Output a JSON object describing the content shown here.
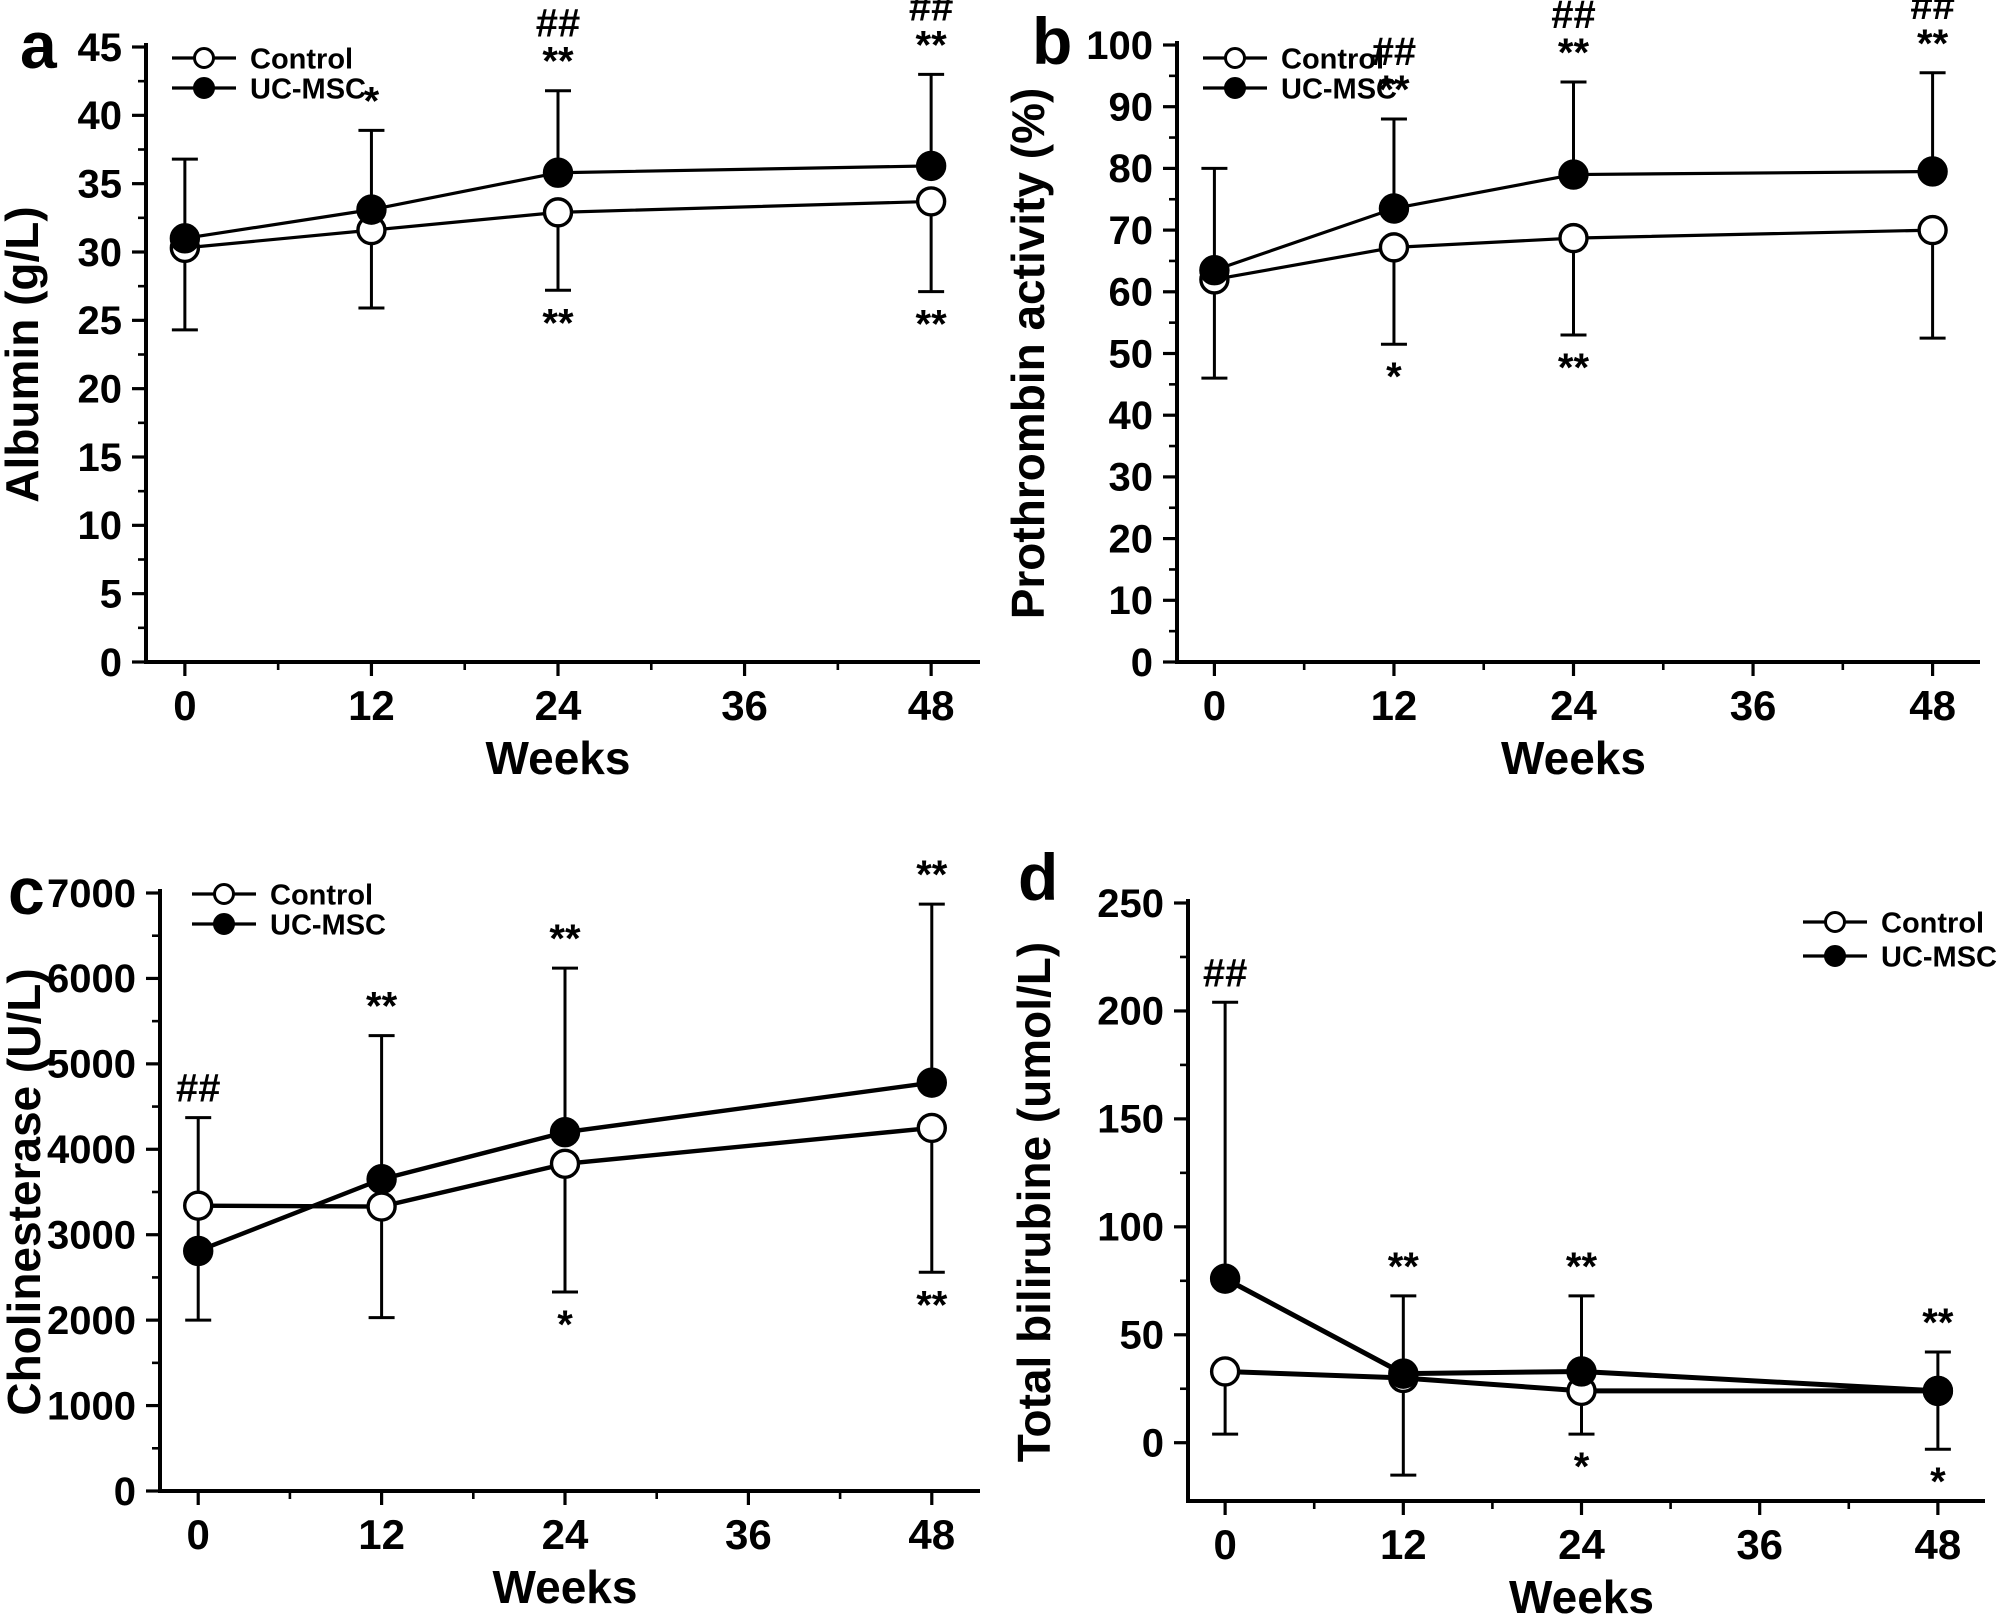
{
  "figure": {
    "background_color": "#ffffff",
    "foreground_color": "#000000",
    "legend_labels": {
      "control": "Control",
      "treatment": "UC-MSC"
    }
  },
  "chart_data": [
    {
      "type": "line",
      "panel_label": "a",
      "xlabel": "Weeks",
      "ylabel": "Albumin (g/L)",
      "x": [
        0,
        12,
        24,
        48
      ],
      "xticks": [
        0,
        12,
        24,
        36,
        48
      ],
      "xminor": [
        6,
        18,
        30,
        42
      ],
      "xlim": [
        -2.5,
        50.5
      ],
      "ylim": [
        0,
        45
      ],
      "yticks": [
        0,
        5,
        10,
        15,
        20,
        25,
        30,
        35,
        40,
        45
      ],
      "yminor": [
        2.5,
        7.5,
        12.5,
        17.5,
        22.5,
        27.5,
        32.5,
        37.5,
        42.5
      ],
      "grid": false,
      "legend_position": "top-left",
      "legend": [
        {
          "label": "Control",
          "marker": "open-circle"
        },
        {
          "label": "UC-MSC",
          "marker": "filled-circle"
        }
      ],
      "series": [
        {
          "name": "Control",
          "marker": "open-circle",
          "values": [
            30.3,
            31.6,
            32.9,
            33.7
          ],
          "err_lo": [
            24.3,
            25.9,
            27.2,
            27.1
          ],
          "err_hi": [
            36.8,
            null,
            null,
            null
          ]
        },
        {
          "name": "UC-MSC",
          "marker": "filled-circle",
          "values": [
            31.0,
            33.1,
            35.8,
            36.3
          ],
          "err_lo": [
            null,
            null,
            null,
            null
          ],
          "err_hi": [
            null,
            38.9,
            41.8,
            43.0
          ]
        }
      ],
      "annotations": [
        {
          "x": 12,
          "y": 38.9,
          "side": "above",
          "lines": [
            "*"
          ]
        },
        {
          "x": 24,
          "y": 41.8,
          "side": "above",
          "lines": [
            "##",
            "**"
          ]
        },
        {
          "x": 48,
          "y": 43.0,
          "side": "above",
          "lines": [
            "##",
            "**"
          ]
        },
        {
          "x": 24,
          "y": 27.2,
          "side": "below",
          "lines": [
            "**"
          ]
        },
        {
          "x": 48,
          "y": 27.1,
          "side": "below",
          "lines": [
            "**"
          ]
        }
      ]
    },
    {
      "type": "line",
      "panel_label": "b",
      "xlabel": "Weeks",
      "ylabel": "Prothrombin activity (%)",
      "x": [
        0,
        12,
        24,
        48
      ],
      "xticks": [
        0,
        12,
        24,
        36,
        48
      ],
      "xminor": [
        6,
        18,
        30,
        42
      ],
      "xlim": [
        -2.5,
        50.5
      ],
      "ylim": [
        0,
        100
      ],
      "yticks": [
        0,
        10,
        20,
        30,
        40,
        50,
        60,
        70,
        80,
        90,
        100
      ],
      "yminor": [
        5,
        15,
        25,
        35,
        45,
        55,
        65,
        75,
        85,
        95
      ],
      "grid": false,
      "legend_position": "top-left",
      "legend": [
        {
          "label": "Control",
          "marker": "open-circle"
        },
        {
          "label": "UC-MSC",
          "marker": "filled-circle"
        }
      ],
      "series": [
        {
          "name": "Control",
          "marker": "open-circle",
          "values": [
            62.0,
            67.2,
            68.7,
            70.0
          ],
          "err_lo": [
            46.0,
            51.5,
            53.0,
            52.5
          ],
          "err_hi": [
            80.0,
            null,
            null,
            null
          ]
        },
        {
          "name": "UC-MSC",
          "marker": "filled-circle",
          "values": [
            63.5,
            73.5,
            79.0,
            79.5
          ],
          "err_lo": [
            null,
            null,
            null,
            null
          ],
          "err_hi": [
            null,
            88.0,
            94.0,
            95.5
          ]
        }
      ],
      "annotations": [
        {
          "x": 12,
          "y": 88.0,
          "side": "above",
          "lines": [
            "##",
            "**"
          ]
        },
        {
          "x": 24,
          "y": 94.0,
          "side": "above",
          "lines": [
            "##",
            "**"
          ]
        },
        {
          "x": 48,
          "y": 95.5,
          "side": "above",
          "lines": [
            "##",
            "**"
          ]
        },
        {
          "x": 12,
          "y": 51.5,
          "side": "below",
          "lines": [
            "*"
          ]
        },
        {
          "x": 24,
          "y": 53.0,
          "side": "below",
          "lines": [
            "**"
          ]
        }
      ]
    },
    {
      "type": "line",
      "panel_label": "c",
      "xlabel": "Weeks",
      "ylabel": "Cholinesterase (U/L)",
      "x": [
        0,
        12,
        24,
        48
      ],
      "xticks": [
        0,
        12,
        24,
        36,
        48
      ],
      "xminor": [
        6,
        18,
        30,
        42
      ],
      "xlim": [
        -2.5,
        50.5
      ],
      "ylim": [
        0,
        7000
      ],
      "yticks": [
        0,
        1000,
        2000,
        3000,
        4000,
        5000,
        6000,
        7000
      ],
      "yminor": [
        500,
        1500,
        2500,
        3500,
        4500,
        5500,
        6500
      ],
      "grid": false,
      "legend_position": "top-left",
      "legend": [
        {
          "label": "Control",
          "marker": "open-circle"
        },
        {
          "label": "UC-MSC",
          "marker": "filled-circle"
        }
      ],
      "series": [
        {
          "name": "Control",
          "marker": "open-circle",
          "values": [
            3340,
            3330,
            3830,
            4250
          ],
          "err_lo": [
            2000,
            2030,
            2330,
            2560
          ],
          "err_hi": [
            4370,
            null,
            null,
            null
          ]
        },
        {
          "name": "UC-MSC",
          "marker": "filled-circle",
          "values": [
            2810,
            3650,
            4200,
            4780
          ],
          "err_lo": [
            null,
            null,
            null,
            null
          ],
          "err_hi": [
            null,
            5330,
            6120,
            6870
          ]
        }
      ],
      "annotations": [
        {
          "x": 0,
          "y": 4370,
          "side": "above",
          "lines": [
            "##"
          ]
        },
        {
          "x": 12,
          "y": 5330,
          "side": "above",
          "lines": [
            "**"
          ]
        },
        {
          "x": 24,
          "y": 6120,
          "side": "above",
          "lines": [
            "**"
          ]
        },
        {
          "x": 48,
          "y": 6870,
          "side": "above",
          "lines": [
            "**"
          ]
        },
        {
          "x": 24,
          "y": 2330,
          "side": "below",
          "lines": [
            "*"
          ]
        },
        {
          "x": 48,
          "y": 2560,
          "side": "below",
          "lines": [
            "**"
          ]
        }
      ]
    },
    {
      "type": "line",
      "panel_label": "d",
      "xlabel": "Weeks",
      "ylabel": "Total bilirubine (umol/L)",
      "x": [
        0,
        12,
        24,
        48
      ],
      "xticks": [
        0,
        12,
        24,
        36,
        48
      ],
      "xminor": [
        6,
        18,
        30,
        42
      ],
      "xlim": [
        -2.5,
        50.5
      ],
      "ylim": [
        -27,
        250
      ],
      "yticks": [
        0,
        50,
        100,
        150,
        200,
        250
      ],
      "yminor": [
        25,
        75,
        125,
        175,
        225
      ],
      "grid": false,
      "legend_position": "top-right",
      "legend": [
        {
          "label": "Control",
          "marker": "open-circle"
        },
        {
          "label": "UC-MSC",
          "marker": "filled-circle"
        }
      ],
      "series": [
        {
          "name": "Control",
          "marker": "open-circle",
          "values": [
            33,
            30,
            24,
            24
          ],
          "err_lo": [
            4,
            -15,
            4,
            null
          ],
          "err_hi": [
            null,
            null,
            null,
            null
          ]
        },
        {
          "name": "UC-MSC",
          "marker": "filled-circle",
          "values": [
            76,
            32,
            33,
            24
          ],
          "err_lo": [
            null,
            null,
            null,
            -3
          ],
          "err_hi": [
            204,
            68,
            68,
            42
          ]
        }
      ],
      "annotations": [
        {
          "x": 0,
          "y": 204,
          "side": "above",
          "lines": [
            "##"
          ]
        },
        {
          "x": 12,
          "y": 68,
          "side": "above",
          "lines": [
            "**"
          ]
        },
        {
          "x": 24,
          "y": 68,
          "side": "above",
          "lines": [
            "**"
          ]
        },
        {
          "x": 48,
          "y": 42,
          "side": "above",
          "lines": [
            "**"
          ]
        },
        {
          "x": 24,
          "y": 4,
          "side": "below",
          "lines": [
            "*"
          ]
        },
        {
          "x": 48,
          "y": -3,
          "side": "below",
          "lines": [
            "*"
          ]
        }
      ]
    }
  ]
}
